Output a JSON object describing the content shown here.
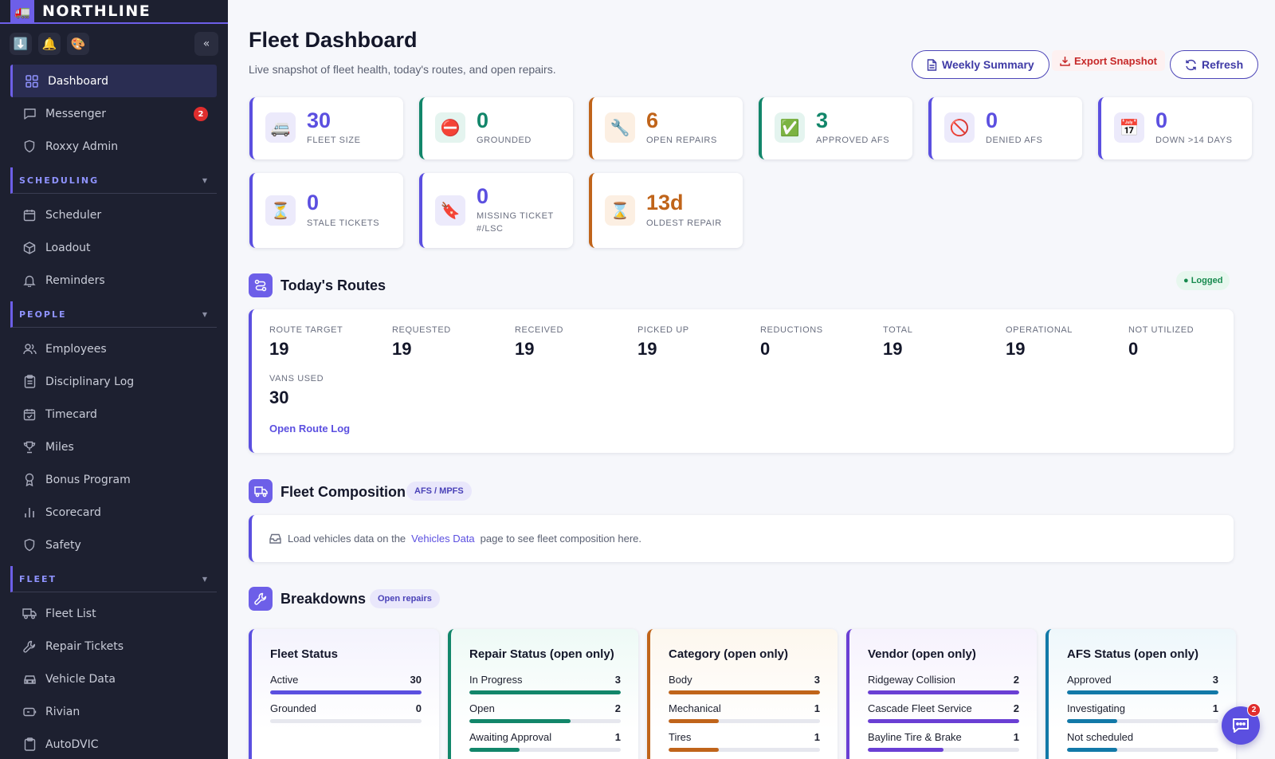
{
  "brand": {
    "name": "NORTHLINE"
  },
  "sidebar": {
    "messenger_badge": "2",
    "items_top": [
      {
        "label": "Dashboard",
        "icon": "grid-icon"
      },
      {
        "label": "Messenger",
        "icon": "chat-icon"
      },
      {
        "label": "Roxxy Admin",
        "icon": "shield-icon"
      }
    ],
    "sections": [
      {
        "title": "SCHEDULING",
        "items": [
          {
            "label": "Scheduler",
            "icon": "calendar-icon"
          },
          {
            "label": "Loadout",
            "icon": "box-icon"
          },
          {
            "label": "Reminders",
            "icon": "bell-icon"
          }
        ]
      },
      {
        "title": "PEOPLE",
        "items": [
          {
            "label": "Employees",
            "icon": "users-icon"
          },
          {
            "label": "Disciplinary Log",
            "icon": "clipboard-icon"
          },
          {
            "label": "Timecard",
            "icon": "calendar-check-icon"
          },
          {
            "label": "Miles",
            "icon": "trophy-icon"
          },
          {
            "label": "Bonus Program",
            "icon": "award-icon"
          },
          {
            "label": "Scorecard",
            "icon": "bar-chart-icon"
          },
          {
            "label": "Safety",
            "icon": "shield-icon"
          }
        ]
      },
      {
        "title": "FLEET",
        "items": [
          {
            "label": "Fleet List",
            "icon": "truck-icon"
          },
          {
            "label": "Repair Tickets",
            "icon": "wrench-icon"
          },
          {
            "label": "Vehicle Data",
            "icon": "car-icon"
          },
          {
            "label": "Rivian",
            "icon": "battery-icon"
          },
          {
            "label": "AutoDVIC",
            "icon": "clipboard-icon"
          }
        ]
      }
    ]
  },
  "header": {
    "title": "Fleet Dashboard",
    "subtitle": "Live snapshot of fleet health, today's routes, and open repairs.",
    "weekly_summary": "Weekly Summary",
    "export_snapshot": "Export Snapshot",
    "refresh": "Refresh"
  },
  "stats": [
    {
      "value": "30",
      "label": "FLEET SIZE",
      "icon": "🚐",
      "color": "#5b4fe0",
      "bg": "#eceafb"
    },
    {
      "value": "0",
      "label": "GROUNDED",
      "icon": "⛔",
      "color": "#12866a",
      "bg": "#e4f4ef"
    },
    {
      "value": "6",
      "label": "OPEN REPAIRS",
      "icon": "🔧",
      "color": "#c0641a",
      "bg": "#fcefe2"
    },
    {
      "value": "3",
      "label": "APPROVED AFS",
      "icon": "✅",
      "color": "#12866a",
      "bg": "#e4f4ef"
    },
    {
      "value": "0",
      "label": "DENIED AFS",
      "icon": "🚫",
      "color": "#5b4fe0",
      "bg": "#eceafb"
    },
    {
      "value": "0",
      "label": "DOWN >14 DAYS",
      "icon": "📅",
      "color": "#5b4fe0",
      "bg": "#eceafb"
    },
    {
      "value": "0",
      "label": "STALE TICKETS",
      "icon": "⏳",
      "color": "#5b4fe0",
      "bg": "#eceafb"
    },
    {
      "value": "0",
      "label": "MISSING TICKET #/LSC",
      "icon": "🔖",
      "color": "#5b4fe0",
      "bg": "#eceafb"
    },
    {
      "value": "13d",
      "label": "OLDEST REPAIR",
      "icon": "⌛",
      "color": "#c0641a",
      "bg": "#fcefe2"
    }
  ],
  "routes": {
    "title": "Today's Routes",
    "status": "● Logged",
    "metrics": [
      {
        "label": "ROUTE TARGET",
        "value": "19"
      },
      {
        "label": "REQUESTED",
        "value": "19"
      },
      {
        "label": "RECEIVED",
        "value": "19"
      },
      {
        "label": "PICKED UP",
        "value": "19"
      },
      {
        "label": "REDUCTIONS",
        "value": "0"
      },
      {
        "label": "TOTAL",
        "value": "19"
      },
      {
        "label": "OPERATIONAL",
        "value": "19"
      },
      {
        "label": "NOT UTILIZED",
        "value": "0"
      },
      {
        "label": "VANS USED",
        "value": "30"
      }
    ],
    "link": "Open Route Log"
  },
  "composition": {
    "title": "Fleet Composition",
    "pill": "AFS / MPFS",
    "text_before": "Load vehicles data on the",
    "link": "Vehicles Data",
    "text_after": "page to see fleet composition here."
  },
  "breakdowns": {
    "title": "Breakdowns",
    "pill": "Open repairs",
    "cards": [
      {
        "title": "Fleet Status",
        "color": "#5b4fe0",
        "bg": "#f4f3fd",
        "rows": [
          {
            "label": "Active",
            "value": "30",
            "fraction": 1.0
          },
          {
            "label": "Grounded",
            "value": "0",
            "fraction": 0.0
          }
        ]
      },
      {
        "title": "Repair Status (open only)",
        "color": "#12866a",
        "bg": "#eefaf6",
        "rows": [
          {
            "label": "In Progress",
            "value": "3",
            "fraction": 1.0
          },
          {
            "label": "Open",
            "value": "2",
            "fraction": 0.67
          },
          {
            "label": "Awaiting Approval",
            "value": "1",
            "fraction": 0.33
          }
        ]
      },
      {
        "title": "Category (open only)",
        "color": "#c0641a",
        "bg": "#fdf7ee",
        "rows": [
          {
            "label": "Body",
            "value": "3",
            "fraction": 1.0
          },
          {
            "label": "Mechanical",
            "value": "1",
            "fraction": 0.33
          },
          {
            "label": "Tires",
            "value": "1",
            "fraction": 0.33
          }
        ]
      },
      {
        "title": "Vendor (open only)",
        "color": "#6a3fd4",
        "bg": "#f6f2fd",
        "rows": [
          {
            "label": "Ridgeway Collision",
            "value": "2",
            "fraction": 1.0
          },
          {
            "label": "Cascade Fleet Service",
            "value": "2",
            "fraction": 1.0
          },
          {
            "label": "Bayline Tire & Brake",
            "value": "1",
            "fraction": 0.5
          }
        ]
      },
      {
        "title": "AFS Status (open only)",
        "color": "#1279a8",
        "bg": "#eef7fb",
        "rows": [
          {
            "label": "Approved",
            "value": "3",
            "fraction": 1.0
          },
          {
            "label": "Investigating",
            "value": "1",
            "fraction": 0.33
          },
          {
            "label": "Not scheduled",
            "value": "",
            "fraction": 0.33
          }
        ]
      }
    ]
  },
  "chat": {
    "badge": "2"
  }
}
